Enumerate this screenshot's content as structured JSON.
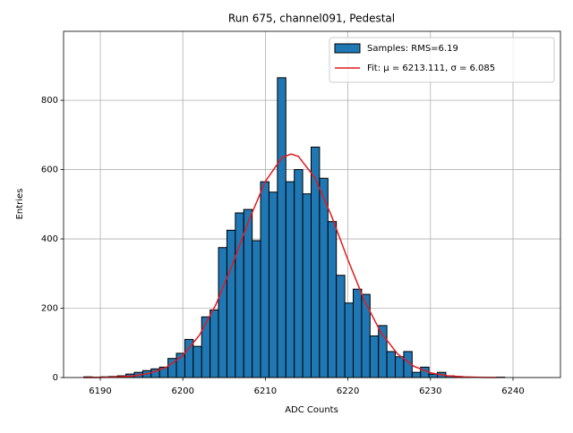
{
  "chart_data": {
    "type": "histogram",
    "title": "Run 675, channel091, Pedestal",
    "xlabel": "ADC Counts",
    "ylabel": "Entries",
    "bins": [
      6188,
      6189.02,
      6190.04,
      6191.06,
      6192.08,
      6193.1,
      6194.12,
      6195.14,
      6196.16,
      6197.18,
      6198.2,
      6199.22,
      6200.24,
      6201.26,
      6202.28,
      6203.3,
      6204.32,
      6205.34,
      6206.36,
      6207.38,
      6208.4,
      6209.42,
      6210.44,
      6211.46,
      6212.48,
      6213.5,
      6214.52,
      6215.54,
      6216.56,
      6217.58,
      6218.6,
      6219.62,
      6220.64,
      6221.66,
      6222.68,
      6223.7,
      6224.72,
      6225.74,
      6226.76,
      6227.78,
      6228.8,
      6229.82,
      6230.84,
      6231.86,
      6232.88,
      6233.9,
      6234.92,
      6235.94,
      6236.96,
      6237.98,
      6239
    ],
    "series": [
      {
        "name": "Samples: RMS=6.19",
        "color": "#1f77b4",
        "edgecolor": "#000000",
        "values": [
          2,
          1,
          2,
          3,
          5,
          10,
          15,
          20,
          25,
          30,
          55,
          70,
          110,
          90,
          175,
          195,
          375,
          425,
          475,
          485,
          395,
          565,
          535,
          865,
          565,
          600,
          530,
          665,
          575,
          450,
          295,
          215,
          255,
          240,
          120,
          150,
          75,
          60,
          75,
          15,
          30,
          10,
          15,
          5,
          3,
          1,
          0,
          0,
          0,
          1
        ]
      },
      {
        "name": "Fit: μ = 6213.111, σ = 6.085",
        "color": "#e41a1c",
        "type": "line",
        "x": [
          6188,
          6190,
          6192,
          6194,
          6196,
          6198,
          6200,
          6202,
          6204,
          6206,
          6208,
          6210,
          6212,
          6213.111,
          6214,
          6216,
          6218,
          6220,
          6222,
          6224,
          6226,
          6228,
          6230,
          6232,
          6234,
          6236,
          6238
        ],
        "values": [
          0.13,
          0.48,
          1.57,
          4.65,
          12.4,
          29.5,
          63.3,
          121.8,
          210.3,
          325.8,
          453.2,
          566.0,
          634.3,
          645,
          638.2,
          576.2,
          467.1,
          339.8,
          221.9,
          130.1,
          68.5,
          32.3,
          13.7,
          5.2,
          1.8,
          0.5,
          0.15
        ]
      }
    ],
    "xlim": [
      6185.55,
      6245.75
    ],
    "ylim": [
      0,
      999
    ],
    "xticks": [
      6190,
      6200,
      6210,
      6220,
      6230,
      6240
    ],
    "yticks": [
      0,
      200,
      400,
      600,
      800
    ],
    "grid": true,
    "legend": "upper right"
  }
}
